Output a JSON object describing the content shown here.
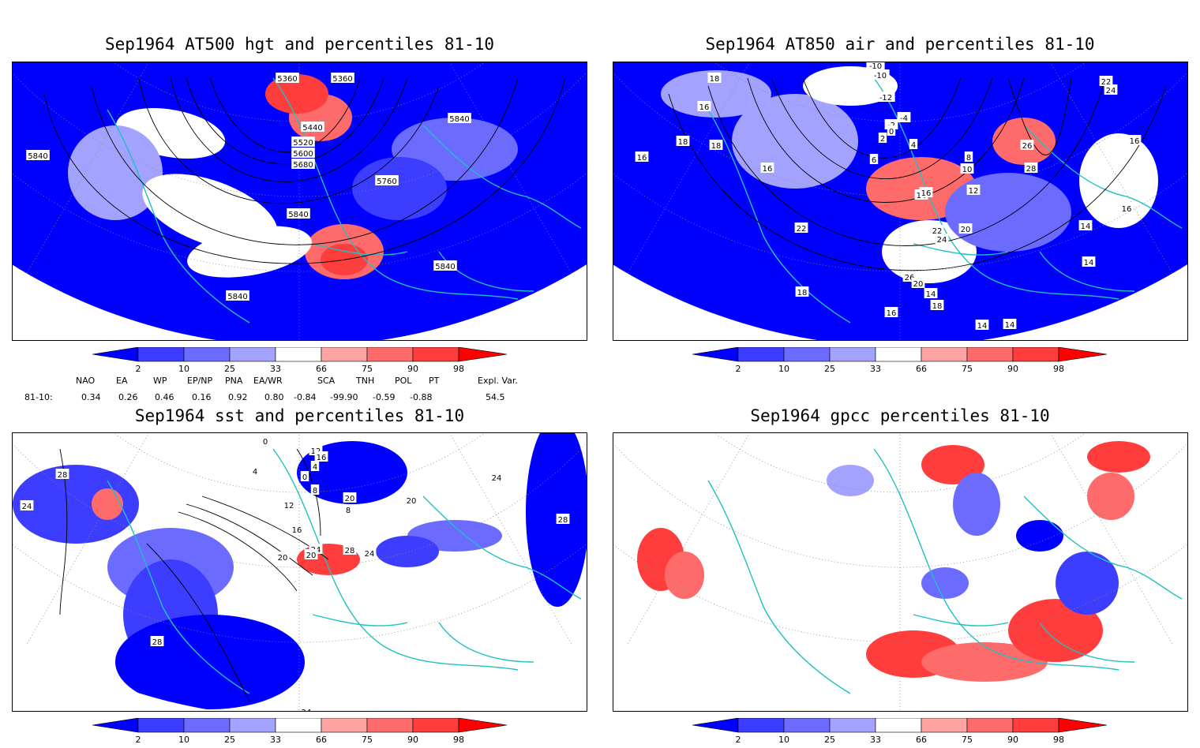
{
  "panels": [
    {
      "id": "hgt500",
      "title": "Sep1964 AT500 hgt and percentiles 81-10",
      "contour_labels": [
        "5360",
        "5360",
        "5440",
        "5520",
        "5600",
        "5680",
        "5760",
        "5840",
        "5840",
        "5840",
        "5840",
        "5840"
      ]
    },
    {
      "id": "air850",
      "title": "Sep1964 AT850 air and percentiles 81-10",
      "contour_labels": [
        "18",
        "18",
        "16",
        "18",
        "18",
        "16",
        "16",
        "16",
        "-10",
        "-10",
        "-12",
        "-4",
        "-2",
        "0",
        "2",
        "4",
        "6",
        "8",
        "10",
        "12",
        "14",
        "16",
        "20",
        "22",
        "24",
        "26",
        "28",
        "22",
        "24",
        "26",
        "20",
        "22",
        "18",
        "16",
        "14",
        "14",
        "14",
        "14",
        "14",
        "18",
        "18",
        "16"
      ]
    },
    {
      "id": "sst",
      "title": "Sep1964 sst and percentiles 81-10",
      "contour_labels": [
        "28",
        "24",
        "0",
        "4",
        "0",
        "4",
        "8",
        "12",
        "16",
        "20",
        "24",
        "28",
        "20",
        "8",
        "12",
        "16",
        "20",
        "24",
        "28",
        "24",
        "28",
        "24",
        "20"
      ]
    },
    {
      "id": "gpcc",
      "title": "Sep1964 gpcc percentiles 81-10",
      "contour_labels": []
    }
  ],
  "colorbar": {
    "labels": [
      "2",
      "10",
      "25",
      "33",
      "66",
      "75",
      "90",
      "98"
    ],
    "colors": [
      "#0000ff",
      "#3d3dff",
      "#6b6bff",
      "#a3a3ff",
      "#ffffff",
      "#ffa3a3",
      "#ff6b6b",
      "#ff3d3d",
      "#ff0000"
    ]
  },
  "indices": {
    "header": [
      "NAO",
      "EA",
      "WP",
      "EP/NP",
      "PNA",
      "EA/WR",
      "SCA",
      "TNH",
      "POL",
      "PT",
      "Expl. Var."
    ],
    "row_label": "81-10:",
    "values": [
      "0.34",
      "0.26",
      "0.46",
      "0.16",
      "0.92",
      "0.80",
      "-0.84",
      "-99.90",
      "-0.59",
      "-0.88",
      "54.5"
    ]
  }
}
